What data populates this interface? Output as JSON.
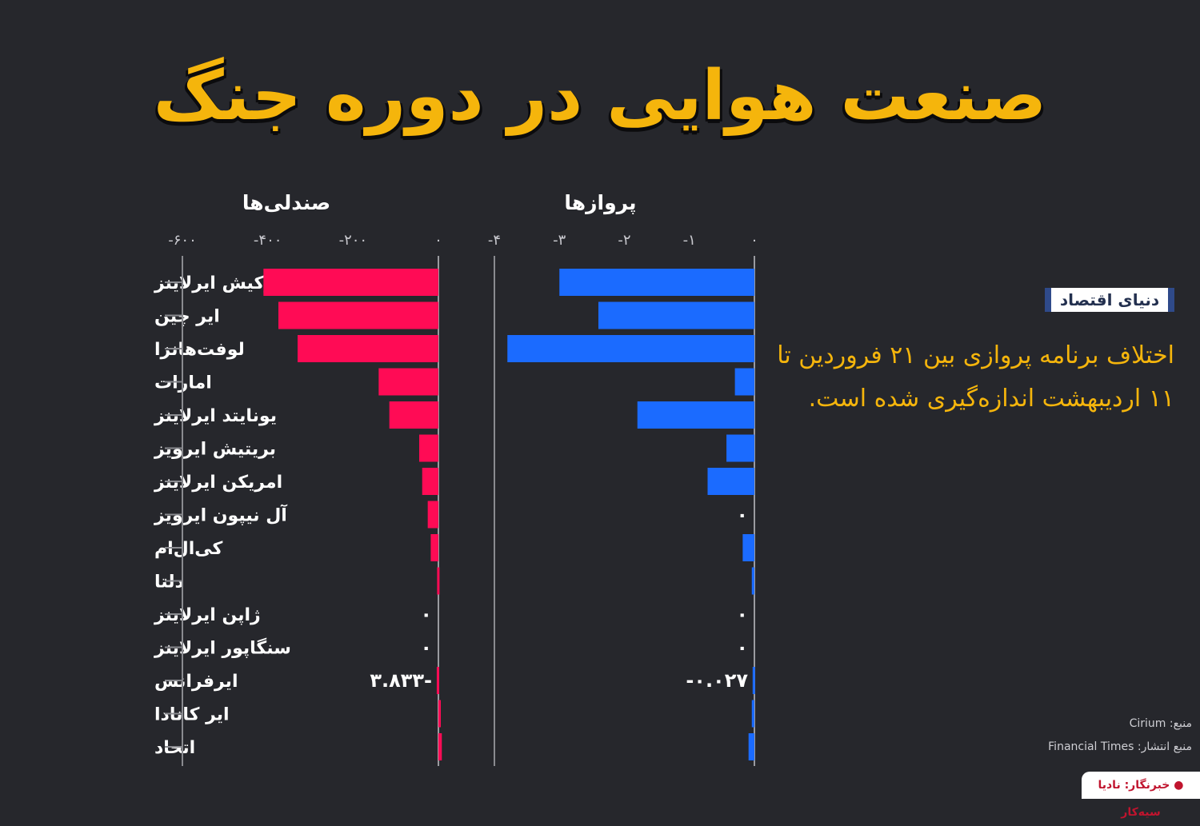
{
  "title": "صنعت هوایی در دوره جنگ",
  "logo_text": "دنیای اقتصاد",
  "description": "اختلاف برنامه پروازی بین ۲۱ فروردین تا ۱۱ اردیبهشت اندازه‌گیری شده است.",
  "source": "منبع: Cirium",
  "publish_source": "منبع انتشار: Financial Times",
  "reporter": "خبرنگار: نادیا سیه‌کار",
  "colors": {
    "seats_bar": "#ff0b55",
    "flights_bar": "#1b6bff",
    "title": "#f5b50c",
    "background": "#26272c"
  },
  "chart_data": [
    {
      "type": "bar",
      "orientation": "horizontal",
      "title": "صندلی‌ها",
      "categories": [
        "ترکیش ایرلاینز",
        "ایر چین",
        "لوفت‌هانزا",
        "امارات",
        "یونایتد ایرلاینز",
        "بریتیش ایرویز",
        "امریکن ایرلاینز",
        "آل نیپون ایرویز",
        "کی‌ال‌ام",
        "دلتا",
        "ژاپن ایرلاینز",
        "سنگاپور ایرلاینز",
        "ایرفرانس",
        "ایر کانادا",
        "اتحاد"
      ],
      "values": [
        -410,
        -375,
        -330,
        -140,
        -115,
        -45,
        -38,
        -25,
        -18,
        -3,
        0,
        0,
        -3.833,
        3,
        8
      ],
      "xlim": [
        -600,
        0
      ],
      "ticks": [
        -600,
        -400,
        -200,
        0
      ],
      "tick_labels": [
        "-۶۰۰",
        "-۴۰۰",
        "-۲۰۰",
        "۰"
      ],
      "annotations": [
        {
          "category": "ژاپن ایرلاینز",
          "text": "۰"
        },
        {
          "category": "سنگاپور ایرلاینز",
          "text": "۰"
        },
        {
          "category": "ایرفرانس",
          "text": "۳.۸۳۳-"
        }
      ]
    },
    {
      "type": "bar",
      "orientation": "horizontal",
      "title": "پروازها",
      "categories": [
        "ترکیش ایرلاینز",
        "ایر چین",
        "لوفت‌هانزا",
        "امارات",
        "یونایتد ایرلاینز",
        "بریتیش ایرویز",
        "امریکن ایرلاینز",
        "آل نیپون ایرویز",
        "کی‌ال‌ام",
        "دلتا",
        "ژاپن ایرلاینز",
        "سنگاپور ایرلاینز",
        "ایرفرانس",
        "ایر کانادا",
        "اتحاد"
      ],
      "values": [
        -3.0,
        -2.4,
        -3.8,
        -0.3,
        -1.8,
        -0.43,
        -0.72,
        0,
        -0.18,
        -0.04,
        0,
        0,
        -0.027,
        -0.04,
        -0.09
      ],
      "xlim": [
        -4,
        0
      ],
      "ticks": [
        -4,
        -3,
        -2,
        -1,
        0
      ],
      "tick_labels": [
        "-۴",
        "-۳",
        "-۲",
        "-۱",
        "۰"
      ],
      "annotations": [
        {
          "category": "آل نیپون ایرویز",
          "text": "۰"
        },
        {
          "category": "ژاپن ایرلاینز",
          "text": "۰"
        },
        {
          "category": "سنگاپور ایرلاینز",
          "text": "۰"
        },
        {
          "category": "ایرفرانس",
          "text": "-۰.۰۲۷"
        }
      ]
    }
  ]
}
